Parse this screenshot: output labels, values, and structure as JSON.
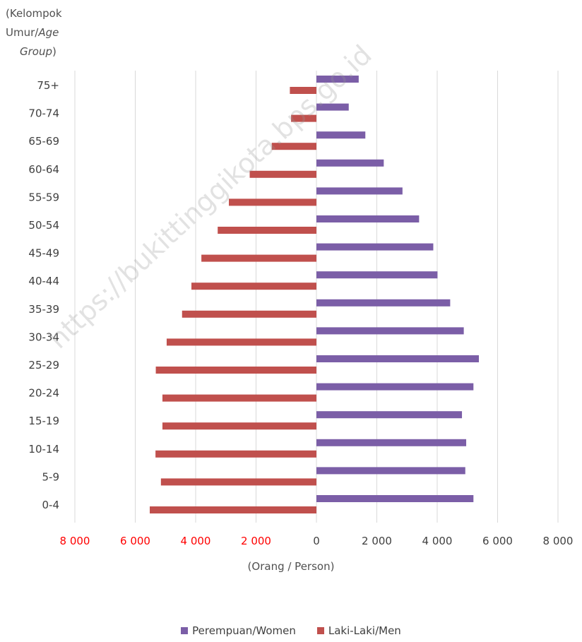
{
  "y_axis_title": {
    "line1": "(Kelompok",
    "line2_prefix": "Umur/",
    "line2_italic": "Age",
    "line3_italic": "Group",
    "line3_suffix": ")"
  },
  "x_axis_unit": "(Orang / Person)",
  "watermark": "https://bukittinggikota.bps.go.id",
  "legend": {
    "women": "Perempuan/Women",
    "men": "Laki-Laki/Men"
  },
  "colors": {
    "women": "#7B5EA7",
    "men": "#C0504D",
    "left_tick_labels": "#FF0000",
    "grid": "#D9D9D9"
  },
  "chart_data": {
    "type": "bar",
    "orientation": "horizontal",
    "subtype": "population-pyramid",
    "categories": [
      "0-4",
      "5-9",
      "10-14",
      "15-19",
      "20-24",
      "25-29",
      "30-34",
      "35-39",
      "40-44",
      "45-49",
      "50-54",
      "55-59",
      "60-64",
      "65-69",
      "70-74",
      "75+"
    ],
    "series": [
      {
        "name": "Perempuan/Women",
        "values": [
          5200,
          4930,
          4960,
          4820,
          5200,
          5380,
          4880,
          4430,
          4010,
          3870,
          3400,
          2850,
          2230,
          1620,
          1070,
          1400
        ]
      },
      {
        "name": "Laki-Laki/Men",
        "values": [
          5520,
          5150,
          5330,
          5100,
          5100,
          5320,
          4960,
          4450,
          4140,
          3810,
          3270,
          2900,
          2210,
          1480,
          840,
          880
        ]
      }
    ],
    "xlim": [
      -8000,
      8000
    ],
    "x_ticks_left": [
      "8 000",
      "6 000",
      "4 000",
      "2 000"
    ],
    "x_ticks_right": [
      "0",
      "2 000",
      "4 000",
      "6 000",
      "8 000"
    ],
    "grid": "vertical",
    "legend_position": "bottom"
  }
}
